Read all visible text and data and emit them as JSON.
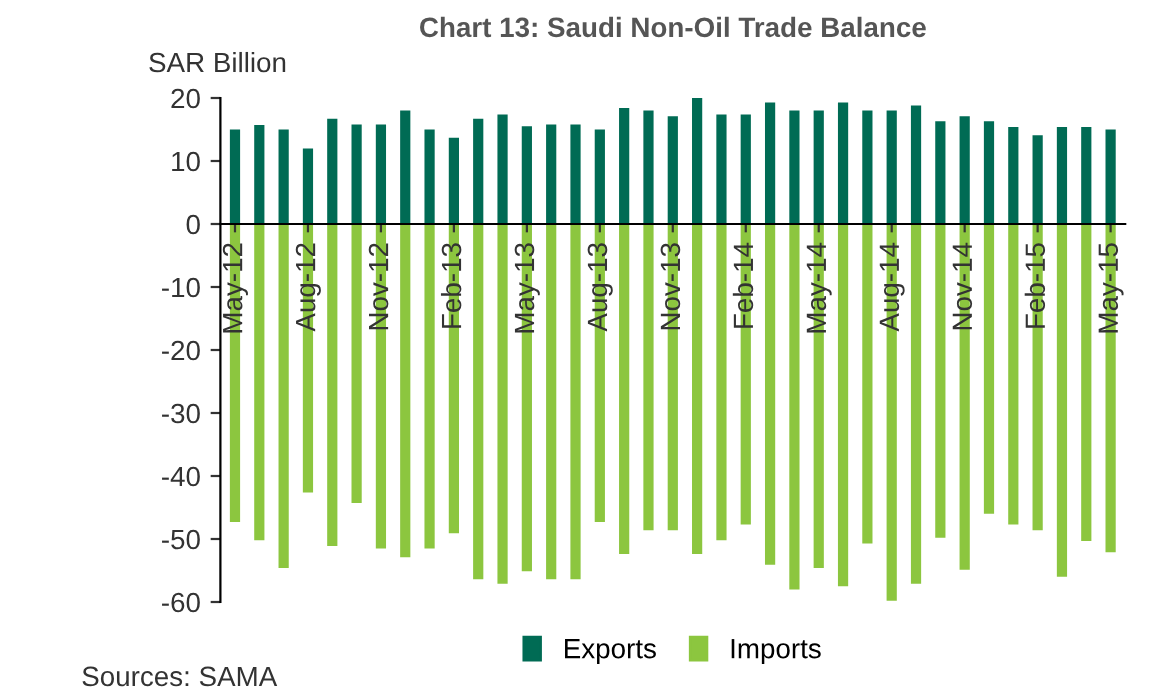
{
  "chart_data": {
    "type": "bar",
    "title": "Chart 13: Saudi Non-Oil Trade Balance",
    "ylabel": "SAR Billion",
    "categories": [
      "May-12",
      null,
      null,
      "Aug-12",
      null,
      null,
      "Nov-12",
      null,
      null,
      "Feb-13",
      null,
      null,
      "May-13",
      null,
      null,
      "Aug-13",
      null,
      null,
      "Nov-13",
      null,
      null,
      "Feb-14",
      null,
      null,
      "May-14",
      null,
      null,
      "Aug-14",
      null,
      null,
      "Nov-14",
      null,
      null,
      "Feb-15",
      null,
      null,
      "May-15"
    ],
    "series": [
      {
        "name": "Exports",
        "color": "#006b54",
        "values": [
          15.0,
          15.7,
          15.0,
          12.0,
          16.7,
          15.8,
          15.8,
          18.0,
          15.0,
          13.7,
          16.7,
          17.4,
          15.5,
          15.8,
          15.8,
          15.0,
          18.4,
          18.0,
          17.1,
          20.0,
          17.4,
          17.4,
          19.3,
          18.0,
          18.0,
          19.3,
          18.0,
          18.0,
          18.8,
          16.3,
          17.1,
          16.3,
          15.4,
          14.1,
          15.4,
          15.4,
          15.0
        ]
      },
      {
        "name": "Imports",
        "color": "#8cc63f",
        "values": [
          -47.3,
          -50.2,
          -54.6,
          -42.6,
          -51.1,
          -44.3,
          -51.5,
          -52.9,
          -51.5,
          -49.1,
          -56.4,
          -57.1,
          -55.1,
          -56.4,
          -56.4,
          -47.3,
          -52.4,
          -48.6,
          -48.6,
          -52.4,
          -50.2,
          -47.7,
          -54.1,
          -58.0,
          -54.6,
          -57.5,
          -50.7,
          -59.8,
          -57.1,
          -49.8,
          -54.9,
          -46.0,
          -47.7,
          -48.6,
          -56.0,
          -50.3,
          -52.1
        ]
      }
    ],
    "ylim": [
      -60,
      20
    ],
    "yticks": [
      -60,
      -50,
      -40,
      -30,
      -20,
      -10,
      0,
      10,
      20
    ],
    "stacked": true,
    "grid": false,
    "legend": "bottom",
    "annotations": [
      "Sources: SAMA"
    ]
  }
}
